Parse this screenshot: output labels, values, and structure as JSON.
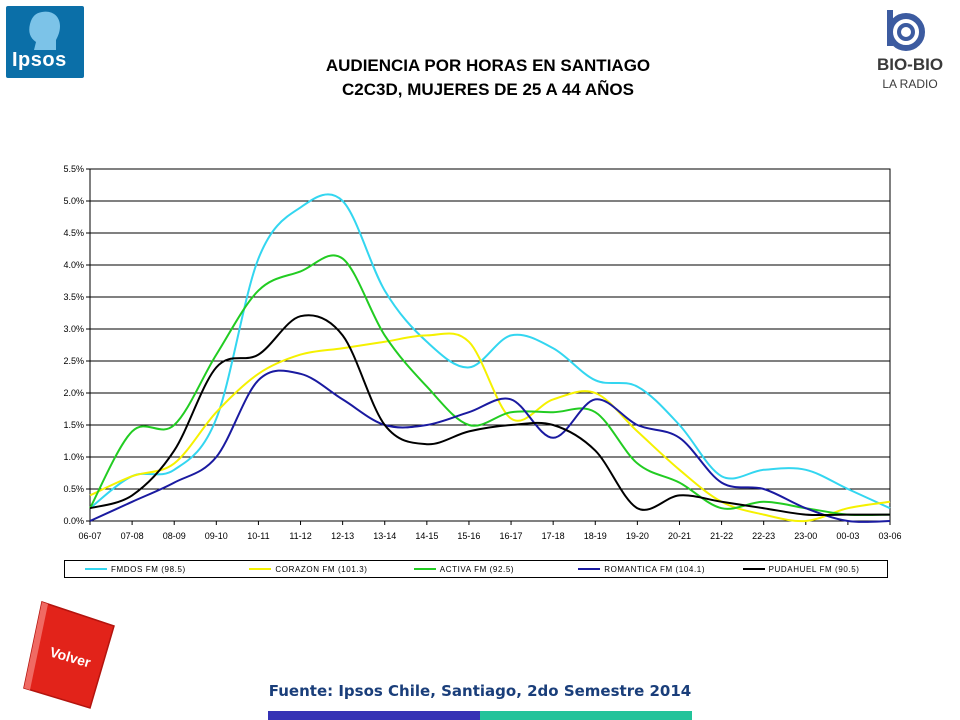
{
  "logos": {
    "ipsos_word": "Ipsos",
    "bio_word": "BIO-BIO",
    "bio_sub": "LA RADIO"
  },
  "buttons": {
    "volver": "Volver"
  },
  "footer": {
    "source": "Fuente: Ipsos Chile, Santiago, 2do Semestre 2014"
  },
  "colors": {
    "ipsos_blue": "#0b6fa8",
    "volver_red": "#e2231a",
    "bar_blue": "#3532b5",
    "bar_green": "#22c39a"
  },
  "chart_data": {
    "type": "line",
    "title": "AUDIENCIA POR HORAS EN SANTIAGO",
    "subtitle": "C2C3D, MUJERES DE 25 A 44 AÑOS",
    "xlabel": "",
    "ylabel": "",
    "ylim": [
      0,
      0.055
    ],
    "yticks": [
      "0.0%",
      "0.5%",
      "1.0%",
      "1.5%",
      "2.0%",
      "2.5%",
      "3.0%",
      "3.5%",
      "4.0%",
      "4.5%",
      "5.0%",
      "5.5%"
    ],
    "grid": "horizontal",
    "legend_position": "bottom",
    "categories": [
      "06-07",
      "07-08",
      "08-09",
      "09-10",
      "10-11",
      "11-12",
      "12-13",
      "13-14",
      "14-15",
      "15-16",
      "16-17",
      "17-18",
      "18-19",
      "19-20",
      "20-21",
      "21-22",
      "22-23",
      "23-00",
      "00-03",
      "03-06"
    ],
    "series": [
      {
        "name": "FMDOS FM (98.5)",
        "color": "#33d6f0",
        "values": [
          0.002,
          0.007,
          0.008,
          0.016,
          0.041,
          0.049,
          0.05,
          0.036,
          0.028,
          0.024,
          0.029,
          0.027,
          0.022,
          0.021,
          0.015,
          0.007,
          0.008,
          0.008,
          0.005,
          0.002
        ]
      },
      {
        "name": "CORAZON FM (101.3)",
        "color": "#f5f100",
        "values": [
          0.004,
          0.007,
          0.009,
          0.017,
          0.023,
          0.026,
          0.027,
          0.028,
          0.029,
          0.028,
          0.016,
          0.019,
          0.02,
          0.014,
          0.008,
          0.003,
          0.001,
          0.0,
          0.002,
          0.003
        ]
      },
      {
        "name": "ACTIVA FM (92.5)",
        "color": "#22cc22",
        "values": [
          0.002,
          0.014,
          0.015,
          0.026,
          0.036,
          0.039,
          0.041,
          0.029,
          0.021,
          0.015,
          0.017,
          0.017,
          0.017,
          0.009,
          0.006,
          0.002,
          0.003,
          0.002,
          0.001,
          0.001
        ]
      },
      {
        "name": "ROMANTICA FM (104.1)",
        "color": "#1a1aa0",
        "values": [
          0.0,
          0.003,
          0.006,
          0.01,
          0.022,
          0.023,
          0.019,
          0.015,
          0.015,
          0.017,
          0.019,
          0.013,
          0.019,
          0.015,
          0.013,
          0.006,
          0.005,
          0.002,
          0.0,
          0.0
        ]
      },
      {
        "name": "PUDAHUEL FM (90.5)",
        "color": "#000000",
        "values": [
          0.002,
          0.004,
          0.011,
          0.024,
          0.026,
          0.032,
          0.029,
          0.015,
          0.012,
          0.014,
          0.015,
          0.015,
          0.011,
          0.002,
          0.004,
          0.003,
          0.002,
          0.001,
          0.001,
          0.001
        ]
      }
    ]
  }
}
